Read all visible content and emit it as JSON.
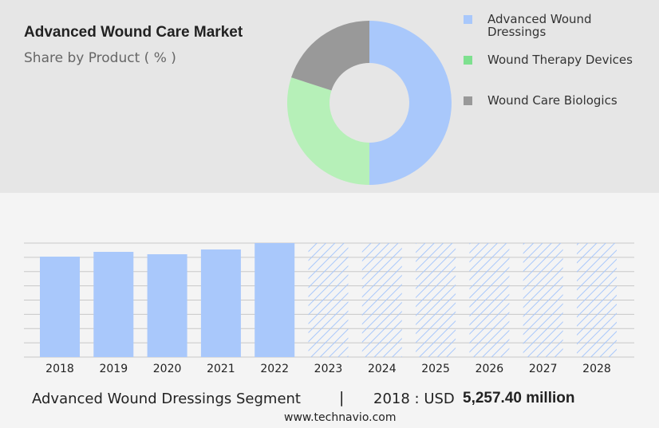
{
  "chart_data": [
    {
      "type": "pie",
      "title": "Advanced Wound Care Market",
      "subtitle": "Share by Product ( % )",
      "categories": [
        "Advanced Wound Dressings",
        "Wound Therapy Devices",
        "Wound Care Biologics"
      ],
      "values": [
        50,
        30,
        20
      ],
      "colors": [
        "#a9c8fb",
        "#b6f0b8",
        "#999999"
      ],
      "legend_colors": [
        "#a9c8fb",
        "#7ee08f",
        "#999999"
      ]
    },
    {
      "type": "bar",
      "categories": [
        "2018",
        "2019",
        "2020",
        "2021",
        "2022",
        "2023",
        "2024",
        "2025",
        "2026",
        "2027",
        "2028"
      ],
      "values": [
        5257.4,
        5507,
        5382,
        5632,
        5966,
        null,
        null,
        null,
        null,
        null,
        null
      ],
      "color": "#a9c8fb",
      "ylim": [
        0,
        5966
      ]
    }
  ],
  "footer": {
    "segment": "Advanced Wound Dressings Segment",
    "separator": "|",
    "year": "2018 : USD",
    "amount": "5,257.40 million",
    "source": "www.technavio.com"
  }
}
